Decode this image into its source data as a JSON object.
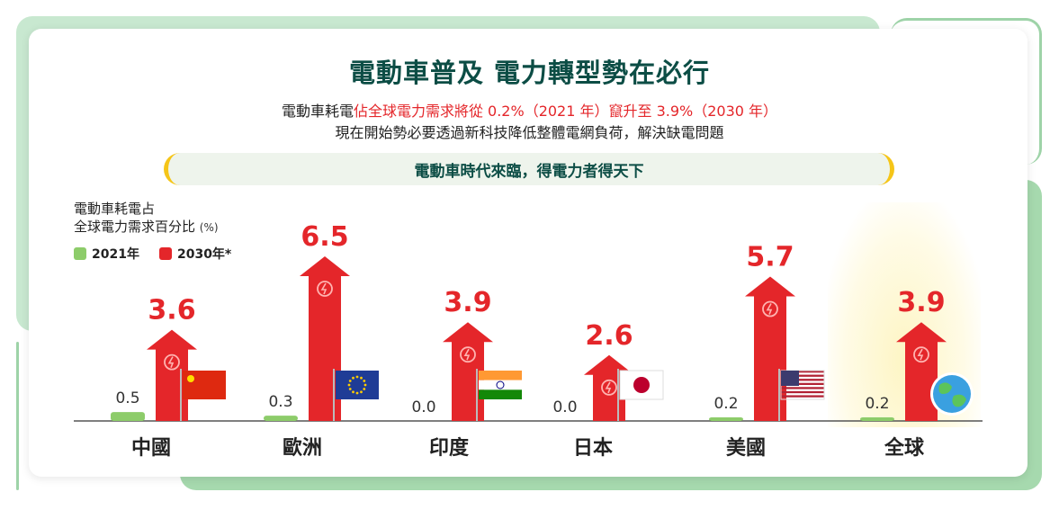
{
  "title": "電動車普及  電力轉型勢在必行",
  "subtitle": {
    "part1": "電動車耗電",
    "part2_highlight": "佔全球電力需求將從 0.2%（2021 年）竄升至 3.9%（2030 年）",
    "line2": "現在開始勢必要透過新科技降低整體電網負荷，解決缺電問題"
  },
  "banner": "電動車時代來臨，得電力者得天下",
  "colors": {
    "green": "#8dcc6a",
    "red": "#e4262a",
    "title": "#0c4d45",
    "accent": "#f5c518"
  },
  "chart_data": {
    "type": "bar",
    "ylabel": "電動車耗電占",
    "ylabel_line2": "全球電力需求百分比",
    "ylabel_unit": "(%)",
    "categories": [
      "中國",
      "歐洲",
      "印度",
      "日本",
      "美國",
      "全球"
    ],
    "series": [
      {
        "name": "2021年",
        "values": [
          0.5,
          0.3,
          0.0,
          0.0,
          0.2,
          0.2
        ],
        "labels": [
          "0.5",
          "0.3",
          "0.0",
          "0.0",
          "0.2",
          "0.2"
        ]
      },
      {
        "name": "2030年*",
        "values": [
          3.6,
          6.5,
          3.9,
          2.6,
          5.7,
          3.9
        ],
        "labels": [
          "3.6",
          "6.5",
          "3.9",
          "2.6",
          "5.7",
          "3.9"
        ]
      }
    ],
    "flags": [
      "china-flag-icon",
      "eu-flag-icon",
      "india-flag-icon",
      "japan-flag-icon",
      "usa-flag-icon",
      "globe-icon"
    ],
    "ylim": [
      0,
      7
    ],
    "grid": false,
    "legend_position": "top-left"
  }
}
